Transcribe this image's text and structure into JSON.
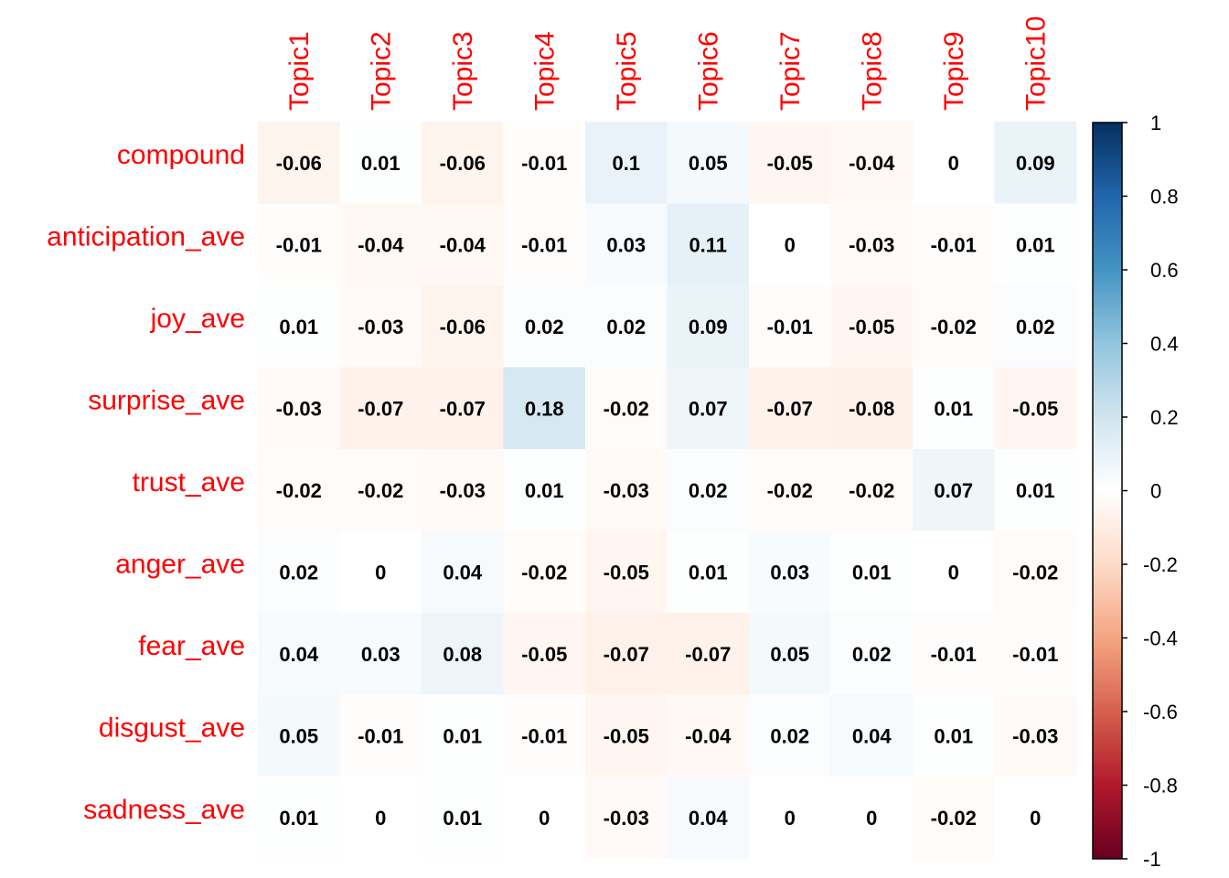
{
  "chart_data": {
    "type": "heatmap",
    "columns": [
      "Topic1",
      "Topic2",
      "Topic3",
      "Topic4",
      "Topic5",
      "Topic6",
      "Topic7",
      "Topic8",
      "Topic9",
      "Topic10"
    ],
    "rows": [
      "compound",
      "anticipation_ave",
      "joy_ave",
      "surprise_ave",
      "trust_ave",
      "anger_ave",
      "fear_ave",
      "disgust_ave",
      "sadness_ave"
    ],
    "values": [
      [
        -0.06,
        0.01,
        -0.06,
        -0.01,
        0.1,
        0.05,
        -0.05,
        -0.04,
        0,
        0.09
      ],
      [
        -0.01,
        -0.04,
        -0.04,
        -0.01,
        0.03,
        0.11,
        0,
        -0.03,
        -0.01,
        0.01
      ],
      [
        0.01,
        -0.03,
        -0.06,
        0.02,
        0.02,
        0.09,
        -0.01,
        -0.05,
        -0.02,
        0.02
      ],
      [
        -0.03,
        -0.07,
        -0.07,
        0.18,
        -0.02,
        0.07,
        -0.07,
        -0.08,
        0.01,
        -0.05
      ],
      [
        -0.02,
        -0.02,
        -0.03,
        0.01,
        -0.03,
        0.02,
        -0.02,
        -0.02,
        0.07,
        0.01
      ],
      [
        0.02,
        0,
        0.04,
        -0.02,
        -0.05,
        0.01,
        0.03,
        0.01,
        0,
        -0.02
      ],
      [
        0.04,
        0.03,
        0.08,
        -0.05,
        -0.07,
        -0.07,
        0.05,
        0.02,
        -0.01,
        -0.01
      ],
      [
        0.05,
        -0.01,
        0.01,
        -0.01,
        -0.05,
        -0.04,
        0.02,
        0.04,
        0.01,
        -0.03
      ],
      [
        0.01,
        0,
        0.01,
        0,
        -0.03,
        0.04,
        0,
        0,
        -0.02,
        0
      ]
    ],
    "colorbar": {
      "range": [
        -1,
        1
      ],
      "ticks": [
        "1",
        "0.8",
        "0.6",
        "0.4",
        "0.2",
        "0",
        "-0.2",
        "-0.4",
        "-0.6",
        "-0.8",
        "-1"
      ],
      "colors": [
        "#67001F",
        "#B2182B",
        "#D6604D",
        "#F4A582",
        "#FDDBC7",
        "#FFFFFF",
        "#D1E5F0",
        "#92C5DE",
        "#4393C3",
        "#2166AC",
        "#053061"
      ]
    },
    "label_color": "#FF0000",
    "grid": false,
    "legend": "right"
  }
}
